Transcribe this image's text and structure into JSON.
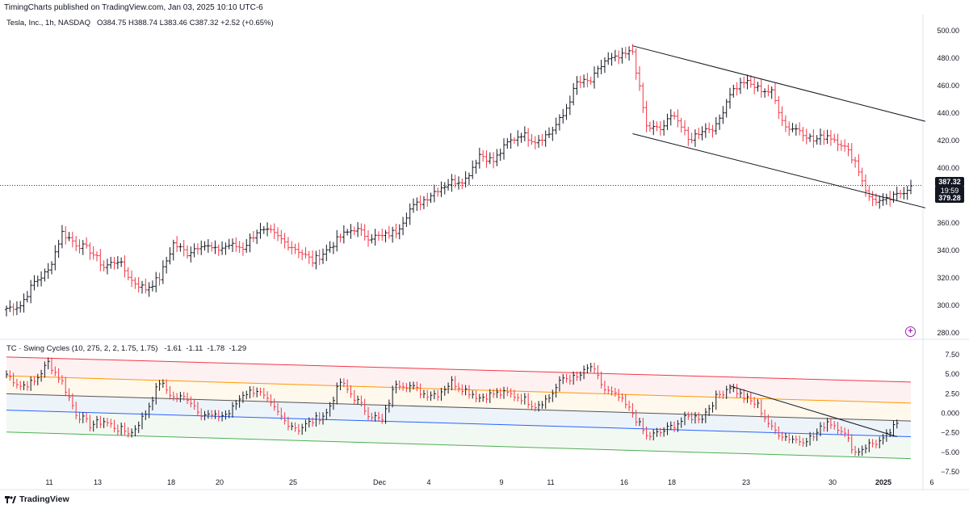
{
  "header": {
    "published": "TimingCharts published on TradingView.com, Jan 03, 2025 10:10 UTC-6"
  },
  "legend": {
    "symbol": "Tesla, Inc., 1h, NASDAQ",
    "open": "O384.75",
    "high": "H388.74",
    "low": "L383.46",
    "close": "C387.32",
    "change": "+2.52 (+0.65%)"
  },
  "indicator": {
    "label": "TC · Swing Cycles (10, 275, 2, 2, 1.75, 1.75)",
    "values": "-1.61  -1.11  -1.78  -1.29"
  },
  "price_tags": {
    "last": "387.32",
    "countdown": "19:59",
    "low": "379.28"
  },
  "footer": {
    "brand": "TradingView"
  },
  "colors": {
    "up": "#131722",
    "down": "#f23645",
    "red_band": "#f23645",
    "orange_band": "#ff9800",
    "gray_line": "#555555",
    "blue_band": "#2962ff",
    "green_band": "#4caf50",
    "accent": "#9c27b0"
  },
  "chart_data": [
    {
      "type": "candlestick",
      "title": "Tesla, Inc., 1h, NASDAQ",
      "y_axis_ticks": [
        "500.00",
        "480.00",
        "460.00",
        "440.00",
        "420.00",
        "400.00",
        "360.00",
        "340.00",
        "320.00",
        "300.00",
        "280.00"
      ],
      "ylim": [
        275,
        505
      ],
      "last_price": 387.32,
      "x_ticks": [
        "11",
        "13",
        "18",
        "20",
        "25",
        "Dec",
        "4",
        "9",
        "11",
        "16",
        "18",
        "23",
        "30",
        "2025",
        "6"
      ],
      "close_path": [
        {
          "x": "Nov 8",
          "y": 298
        },
        {
          "x": "Nov 8b",
          "y": 300
        },
        {
          "x": "Nov 8c",
          "y": 317
        },
        {
          "x": "Nov 8d",
          "y": 325
        },
        {
          "x": "Nov 11",
          "y": 353
        },
        {
          "x": "Nov 11b",
          "y": 345
        },
        {
          "x": "Nov 12",
          "y": 340
        },
        {
          "x": "Nov 13",
          "y": 328
        },
        {
          "x": "Nov 14",
          "y": 333
        },
        {
          "x": "Nov 15",
          "y": 318
        },
        {
          "x": "Nov 15b",
          "y": 312
        },
        {
          "x": "Nov 15c",
          "y": 320
        },
        {
          "x": "Nov 18",
          "y": 345
        },
        {
          "x": "Nov 18b",
          "y": 338
        },
        {
          "x": "Nov 19",
          "y": 345
        },
        {
          "x": "Nov 20",
          "y": 340
        },
        {
          "x": "Nov 21",
          "y": 344
        },
        {
          "x": "Nov 22",
          "y": 342
        },
        {
          "x": "Nov 22b",
          "y": 354
        },
        {
          "x": "Nov 25",
          "y": 353
        },
        {
          "x": "Nov 25b",
          "y": 346
        },
        {
          "x": "Nov 26",
          "y": 340
        },
        {
          "x": "Nov 27",
          "y": 332
        },
        {
          "x": "Nov 29",
          "y": 340
        },
        {
          "x": "Nov 29b",
          "y": 350
        },
        {
          "x": "Dec 2",
          "y": 356
        },
        {
          "x": "Dec 3",
          "y": 350
        },
        {
          "x": "Dec 3b",
          "y": 350
        },
        {
          "x": "Dec 4",
          "y": 354
        },
        {
          "x": "Dec 5",
          "y": 370
        },
        {
          "x": "Dec 6",
          "y": 377
        },
        {
          "x": "Dec 6b",
          "y": 385
        },
        {
          "x": "Dec 9",
          "y": 390
        },
        {
          "x": "Dec 9b",
          "y": 392
        },
        {
          "x": "Dec 10",
          "y": 410
        },
        {
          "x": "Dec 10b",
          "y": 405
        },
        {
          "x": "Dec 11",
          "y": 418
        },
        {
          "x": "Dec 12",
          "y": 425
        },
        {
          "x": "Dec 12b",
          "y": 420
        },
        {
          "x": "Dec 13",
          "y": 425
        },
        {
          "x": "Dec 13b",
          "y": 438
        },
        {
          "x": "Dec 16",
          "y": 462
        },
        {
          "x": "Dec 16b",
          "y": 463
        },
        {
          "x": "Dec 17",
          "y": 478
        },
        {
          "x": "Dec 17b",
          "y": 480
        },
        {
          "x": "Dec 18",
          "y": 485
        },
        {
          "x": "Dec 18b",
          "y": 430
        },
        {
          "x": "Dec 19",
          "y": 428
        },
        {
          "x": "Dec 19b",
          "y": 440
        },
        {
          "x": "Dec 20",
          "y": 420
        },
        {
          "x": "Dec 20b",
          "y": 428
        },
        {
          "x": "Dec 23",
          "y": 430
        },
        {
          "x": "Dec 23b",
          "y": 455
        },
        {
          "x": "Dec 24",
          "y": 463
        },
        {
          "x": "Dec 24b",
          "y": 458
        },
        {
          "x": "Dec 26",
          "y": 455
        },
        {
          "x": "Dec 26b",
          "y": 430
        },
        {
          "x": "Dec 27",
          "y": 428
        },
        {
          "x": "Dec 27b",
          "y": 420
        },
        {
          "x": "Dec 30",
          "y": 424
        },
        {
          "x": "Dec 30b",
          "y": 418
        },
        {
          "x": "Dec 31",
          "y": 405
        },
        {
          "x": "Jan 2",
          "y": 378
        },
        {
          "x": "Jan 2b",
          "y": 375
        },
        {
          "x": "Jan 3",
          "y": 380
        },
        {
          "x": "Jan 3b",
          "y": 387
        }
      ],
      "trendlines": [
        {
          "name": "channel-upper",
          "from": {
            "x": "Dec 18",
            "y": 489
          },
          "to": {
            "x": "Jan 3",
            "y": 434
          }
        },
        {
          "name": "channel-lower",
          "from": {
            "x": "Dec 18",
            "y": 425
          },
          "to": {
            "x": "Jan 3",
            "y": 371
          }
        }
      ]
    },
    {
      "type": "bar-oscillator",
      "title": "TC · Swing Cycles (10, 275, 2, 2, 1.75, 1.75)",
      "y_axis_ticks": [
        "7.50",
        "5.00",
        "2.50",
        "0.000",
        "−2.50",
        "−5.00",
        "−7.50"
      ],
      "ylim": [
        -9.5,
        9.0
      ],
      "bands": [
        {
          "name": "red",
          "start": 7.2,
          "end": 4.0
        },
        {
          "name": "orange",
          "start": 4.8,
          "end": 1.3
        },
        {
          "name": "gray",
          "start": 2.5,
          "end": -1.0
        },
        {
          "name": "blue",
          "start": 0.4,
          "end": -3.0
        },
        {
          "name": "green",
          "start": -2.4,
          "end": -5.8
        }
      ],
      "oscillator_path": [
        {
          "x": "Nov 8",
          "y": 5
        },
        {
          "x": "Nov 8b",
          "y": 3.5
        },
        {
          "x": "Nov 8c",
          "y": 4
        },
        {
          "x": "Nov 11",
          "y": 6.5
        },
        {
          "x": "Nov 11b",
          "y": 4
        },
        {
          "x": "Nov 12",
          "y": 0
        },
        {
          "x": "Nov 13",
          "y": -1.5
        },
        {
          "x": "Nov 14",
          "y": -1
        },
        {
          "x": "Nov 15",
          "y": -2
        },
        {
          "x": "Nov 15b",
          "y": -2.5
        },
        {
          "x": "Nov 15c",
          "y": 0
        },
        {
          "x": "Nov 18",
          "y": 4
        },
        {
          "x": "Nov 18b",
          "y": 2
        },
        {
          "x": "Nov 19",
          "y": 2
        },
        {
          "x": "Nov 20",
          "y": 0
        },
        {
          "x": "Nov 21",
          "y": -0.5
        },
        {
          "x": "Nov 22",
          "y": 0
        },
        {
          "x": "Nov 22b",
          "y": 2.5
        },
        {
          "x": "Nov 25",
          "y": 3
        },
        {
          "x": "Nov 25b",
          "y": 1
        },
        {
          "x": "Nov 26",
          "y": -1
        },
        {
          "x": "Nov 27",
          "y": -2
        },
        {
          "x": "Nov 29",
          "y": -1
        },
        {
          "x": "Nov 29b",
          "y": 0
        },
        {
          "x": "Dec 2",
          "y": 4
        },
        {
          "x": "Dec 3",
          "y": 2
        },
        {
          "x": "Dec 3b",
          "y": 0
        },
        {
          "x": "Dec 4",
          "y": -1
        },
        {
          "x": "Dec 5",
          "y": 4
        },
        {
          "x": "Dec 6",
          "y": 3.5
        },
        {
          "x": "Dec 6b",
          "y": 2.5
        },
        {
          "x": "Dec 9",
          "y": 2.5
        },
        {
          "x": "Dec 9b",
          "y": 4
        },
        {
          "x": "Dec 10",
          "y": 3
        },
        {
          "x": "Dec 10b",
          "y": 2
        },
        {
          "x": "Dec 11",
          "y": 2.5
        },
        {
          "x": "Dec 12",
          "y": 2.5
        },
        {
          "x": "Dec 12b",
          "y": 2
        },
        {
          "x": "Dec 13",
          "y": 1
        },
        {
          "x": "Dec 13b",
          "y": 2
        },
        {
          "x": "Dec 16",
          "y": 4.5
        },
        {
          "x": "Dec 16b",
          "y": 4.5
        },
        {
          "x": "Dec 17",
          "y": 6
        },
        {
          "x": "Dec 17b",
          "y": 3
        },
        {
          "x": "Dec 18",
          "y": 2
        },
        {
          "x": "Dec 18b",
          "y": 0
        },
        {
          "x": "Dec 19",
          "y": -3
        },
        {
          "x": "Dec 19b",
          "y": -2.5
        },
        {
          "x": "Dec 20",
          "y": -1.5
        },
        {
          "x": "Dec 20b",
          "y": -0.5
        },
        {
          "x": "Dec 23",
          "y": -0.5
        },
        {
          "x": "Dec 23b",
          "y": 2
        },
        {
          "x": "Dec 24",
          "y": 3.5
        },
        {
          "x": "Dec 24b",
          "y": 2
        },
        {
          "x": "Dec 26",
          "y": 1
        },
        {
          "x": "Dec 26b",
          "y": -2
        },
        {
          "x": "Dec 27",
          "y": -3
        },
        {
          "x": "Dec 27b",
          "y": -3.5
        },
        {
          "x": "Dec 30",
          "y": -3
        },
        {
          "x": "Dec 30b",
          "y": -1
        },
        {
          "x": "Dec 31",
          "y": -2
        },
        {
          "x": "Jan 2",
          "y": -5
        },
        {
          "x": "Jan 2b",
          "y": -4
        },
        {
          "x": "Jan 3",
          "y": -3.5
        },
        {
          "x": "Jan 3b",
          "y": -1.3
        }
      ],
      "trendline": {
        "from": {
          "x": "Dec 24",
          "y": 3.5
        },
        "to": {
          "x": "Jan 3",
          "y": -3.0
        }
      }
    }
  ]
}
